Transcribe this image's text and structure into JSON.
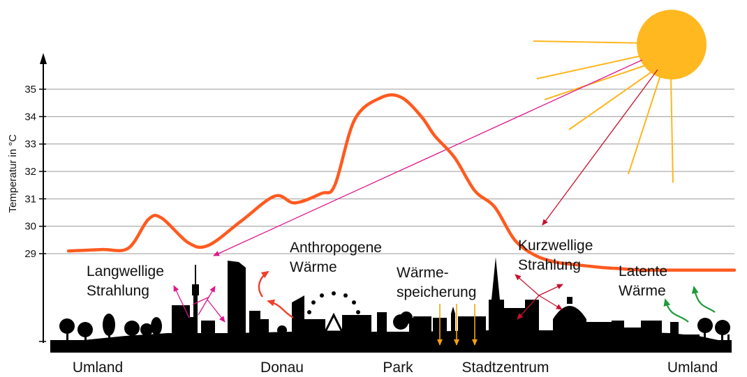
{
  "chart_data": {
    "type": "line",
    "ylabel": "Temperatur in °C",
    "yticks": [
      "29",
      "30",
      "31",
      "32",
      "33",
      "34",
      "35"
    ],
    "ylim": [
      28.4,
      36.0
    ],
    "grid": true,
    "series": [
      {
        "color": "#ff5a1f",
        "x": [
          0,
          5,
          9,
          12,
          14,
          18,
          21,
          26,
          31,
          34,
          38,
          40,
          43,
          47,
          50,
          53,
          55,
          58,
          61,
          64,
          67,
          70,
          73,
          76,
          80,
          83,
          86,
          89,
          92,
          95,
          100
        ],
        "y": [
          29.1,
          29.15,
          29.2,
          30.25,
          30.3,
          29.4,
          29.3,
          30.2,
          31.1,
          30.85,
          31.2,
          31.5,
          33.9,
          34.7,
          34.7,
          34.0,
          33.3,
          32.5,
          31.3,
          30.7,
          29.5,
          28.95,
          28.7,
          28.6,
          28.5,
          28.45,
          28.4,
          28.4,
          28.4,
          28.4,
          28.4
        ]
      }
    ],
    "locations": [
      "Umland",
      "Donau",
      "Park",
      "Stadtzentrum",
      "Umland"
    ],
    "annotations": [
      {
        "lines": [
          "Langwellige",
          "Strahlung"
        ]
      },
      {
        "lines": [
          "Anthropogene",
          "Wärme"
        ]
      },
      {
        "lines": [
          "Wärme-",
          "speicherung"
        ]
      },
      {
        "lines": [
          "Kurzwellige",
          "Strahlung"
        ]
      },
      {
        "lines": [
          "Latente",
          "Wärme"
        ]
      }
    ]
  },
  "colors": {
    "temperature_curve": "#ff5a1f",
    "sun": "#ffb81f",
    "sun_rays": "#ffb61c",
    "longwave": "#e0148c",
    "shortwave": "#c8102e",
    "anthropogenic": "#f0402b",
    "heat_storage": "#f5a10a",
    "latent": "#1f9a3a",
    "skyline": "#000000"
  }
}
